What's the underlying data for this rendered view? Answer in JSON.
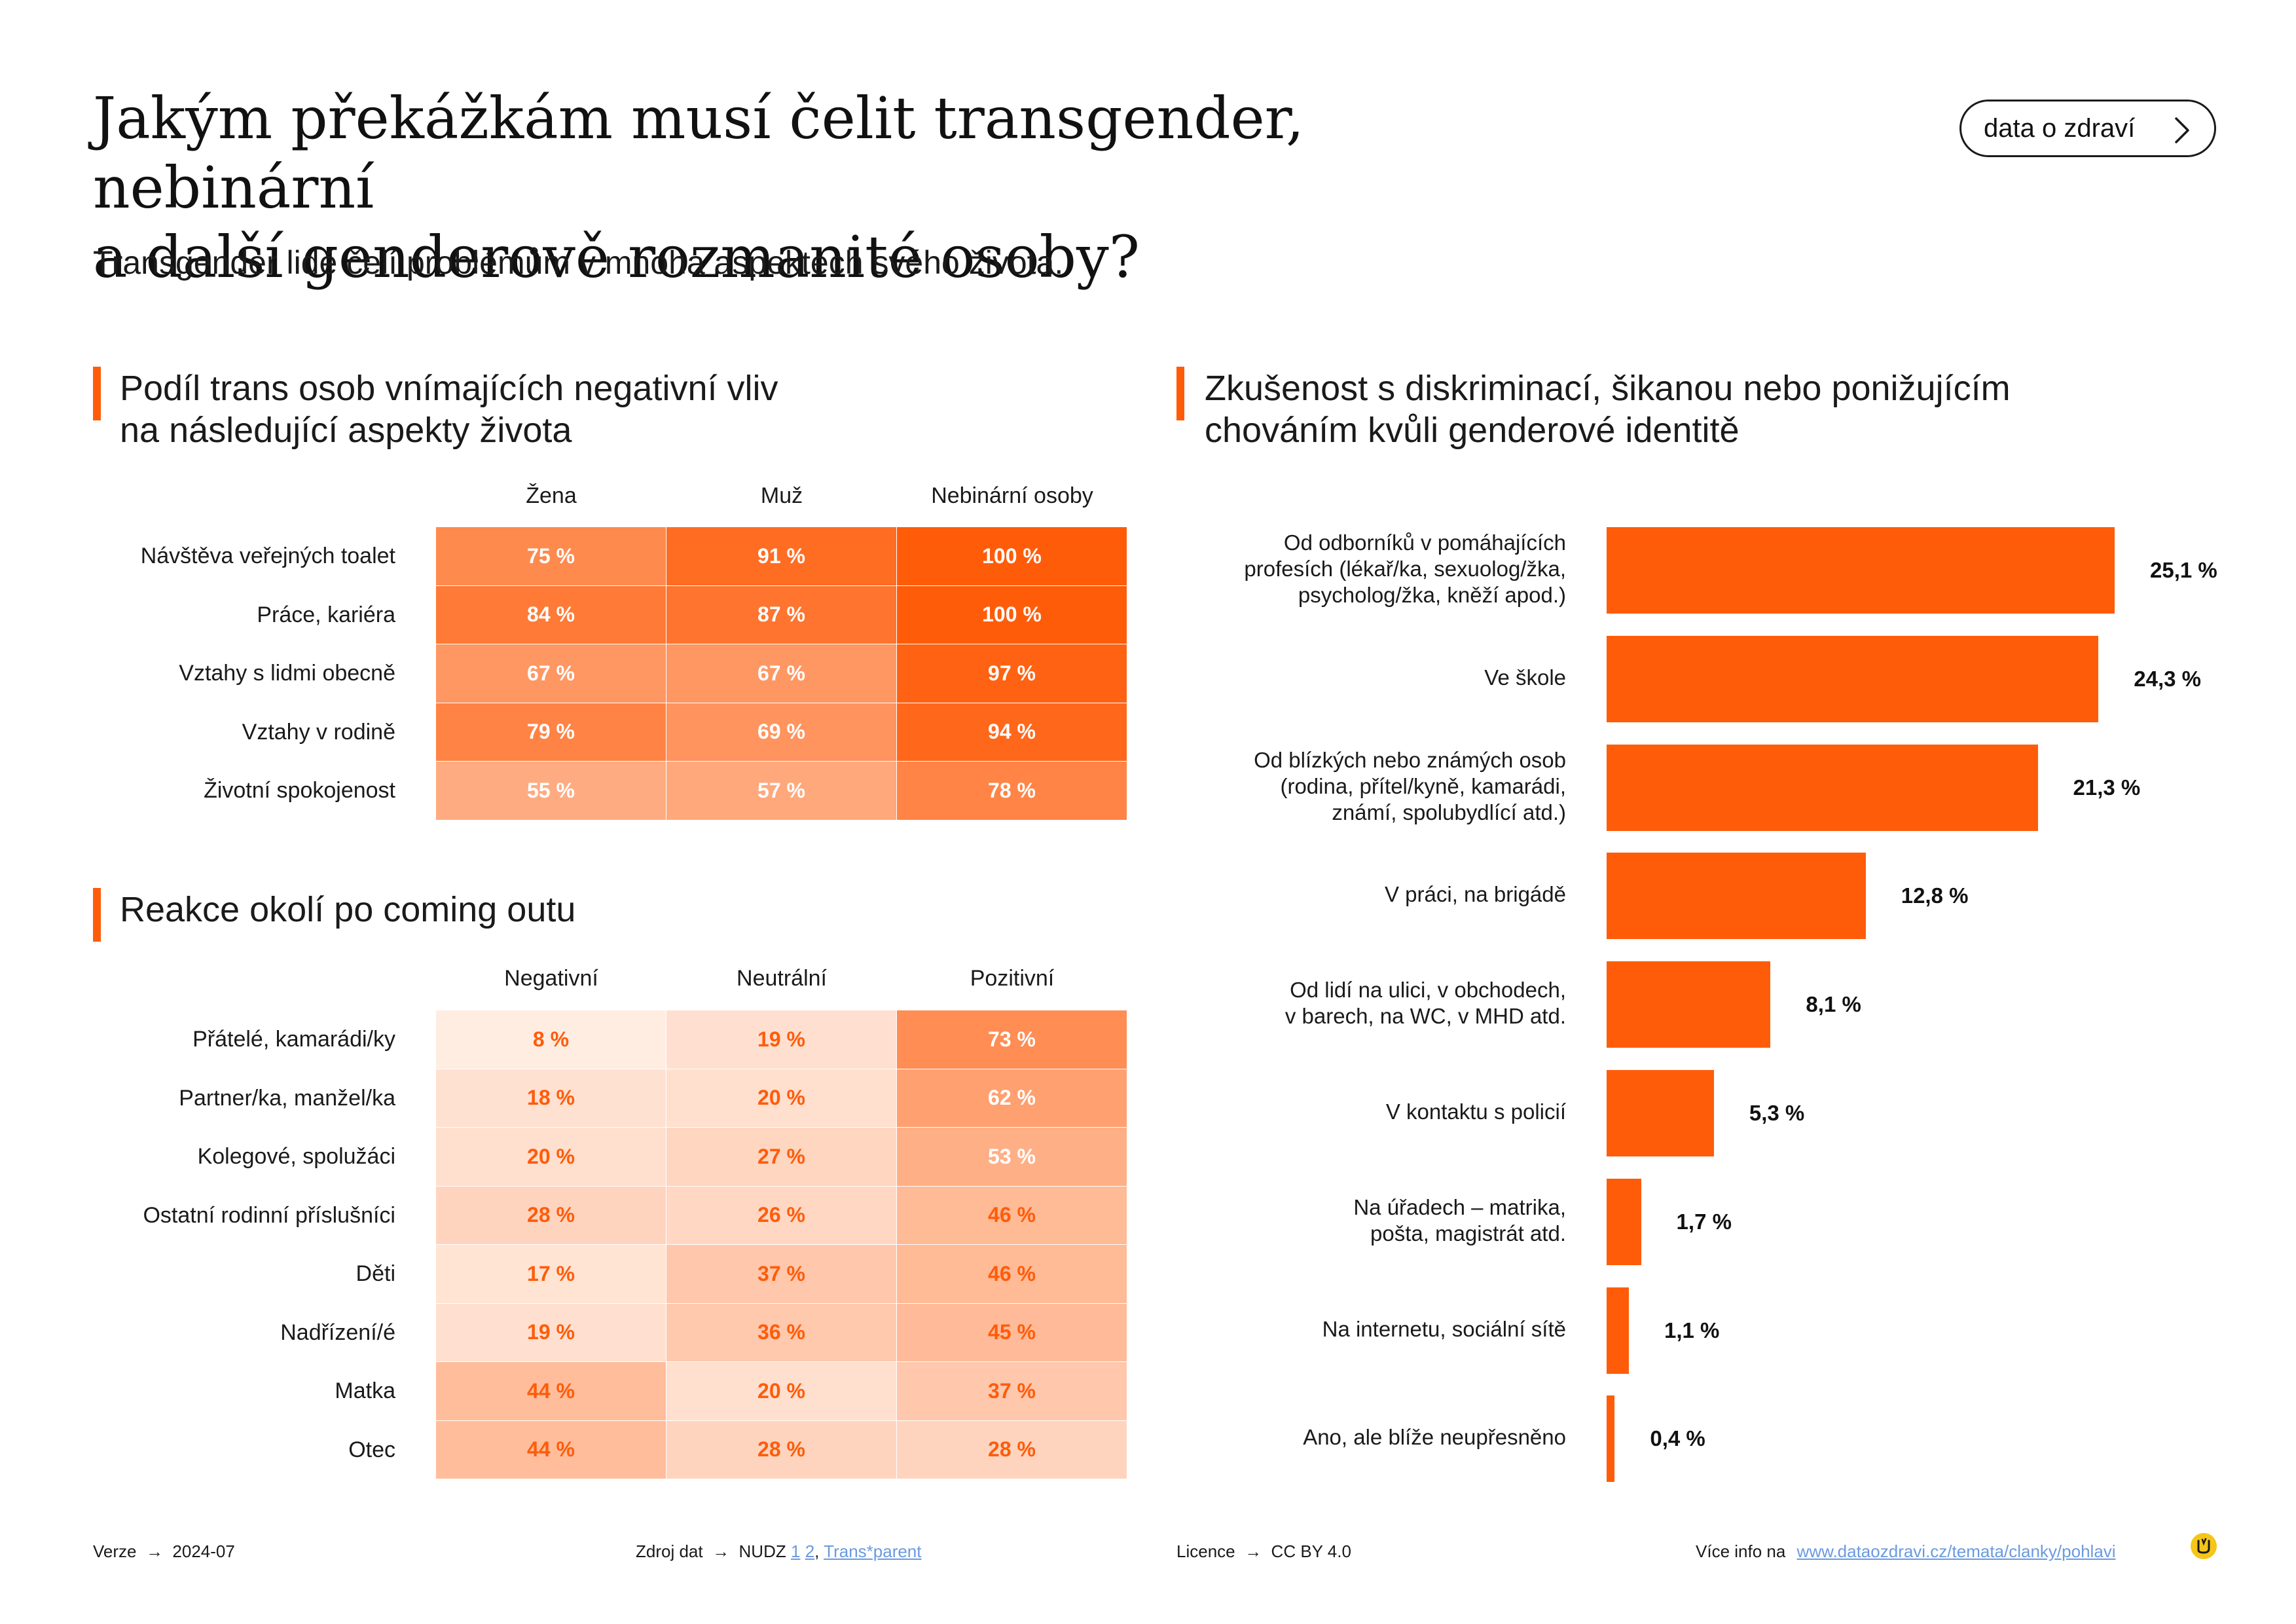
{
  "header": {
    "title_line1": "Jakým překážkám musí čelit transgender, nebinární",
    "title_line2": "a další genderově rozmanité osoby?",
    "subtitle": "Transgender lidé čelí problémům v mnoha aspektech svého života.",
    "button_label": "data o zdraví"
  },
  "section1": {
    "title_line1": "Podíl trans osob vnímajících negativní vliv",
    "title_line2": "na následující aspekty života"
  },
  "section2": {
    "title": "Reakce okolí po coming outu"
  },
  "section3": {
    "title_line1": "Zkušenost s diskriminací, šikanou nebo ponižujícím",
    "title_line2": "chováním kvůli genderové identitě"
  },
  "chart_data": [
    {
      "type": "heatmap",
      "columns": [
        "Žena",
        "Muž",
        "Nebinární osoby"
      ],
      "rows": [
        "Návštěva veřejných toalet",
        "Práce, kariéra",
        "Vztahy s lidmi obecně",
        "Vztahy v rodině",
        "Životní spokojenost"
      ],
      "values": [
        [
          75,
          91,
          100
        ],
        [
          84,
          87,
          100
        ],
        [
          67,
          67,
          97
        ],
        [
          79,
          69,
          94
        ],
        [
          55,
          57,
          78
        ]
      ],
      "labels": [
        [
          "75 %",
          "91 %",
          "100 %"
        ],
        [
          "84 %",
          "87 %",
          "100 %"
        ],
        [
          "67 %",
          "67 %",
          "97 %"
        ],
        [
          "79 %",
          "69 %",
          "94 %"
        ],
        [
          "55 %",
          "57 %",
          "78 %"
        ]
      ],
      "unit": "%"
    },
    {
      "type": "heatmap",
      "columns": [
        "Negativní",
        "Neutrální",
        "Pozitivní"
      ],
      "rows": [
        "Přátelé, kamarádi/ky",
        "Partner/ka, manžel/ka",
        "Kolegové, spolužáci",
        "Ostatní rodinní příslušníci",
        "Děti",
        "Nadřízení/é",
        "Matka",
        "Otec"
      ],
      "values": [
        [
          8,
          19,
          73
        ],
        [
          18,
          20,
          62
        ],
        [
          20,
          27,
          53
        ],
        [
          28,
          26,
          46
        ],
        [
          17,
          37,
          46
        ],
        [
          19,
          36,
          45
        ],
        [
          44,
          20,
          37
        ],
        [
          44,
          28,
          28
        ]
      ],
      "labels": [
        [
          "8 %",
          "19 %",
          "73 %"
        ],
        [
          "18 %",
          "20 %",
          "62 %"
        ],
        [
          "20 %",
          "27 %",
          "53 %"
        ],
        [
          "28 %",
          "26 %",
          "46 %"
        ],
        [
          "17 %",
          "37 %",
          "46 %"
        ],
        [
          "19 %",
          "36 %",
          "45 %"
        ],
        [
          "44 %",
          "20 %",
          "37 %"
        ],
        [
          "44 %",
          "28 %",
          "28 %"
        ]
      ],
      "unit": "%"
    },
    {
      "type": "bar",
      "orientation": "horizontal",
      "categories": [
        [
          "Od odborníků v pomáhajících",
          "profesích (lékař/ka, sexuolog/žka,",
          "psycholog/žka, kněží apod.)"
        ],
        [
          "Ve škole"
        ],
        [
          "Od blízkých nebo známých osob",
          "(rodina, přítel/kyně, kamarádi,",
          "známí, spolubydlící atd.)"
        ],
        [
          "V práci, na brigádě"
        ],
        [
          "Od lidí na ulici, v obchodech,",
          "v barech, na WC, v MHD atd."
        ],
        [
          "V kontaktu s policií"
        ],
        [
          "Na úřadech – matrika,",
          "pošta, magistrát atd."
        ],
        [
          "Na internetu, sociální sítě"
        ],
        [
          "Ano, ale blíže neupřesněno"
        ]
      ],
      "values": [
        25.1,
        24.3,
        21.3,
        12.8,
        8.1,
        5.3,
        1.7,
        1.1,
        0.4
      ],
      "value_labels": [
        "25,1 %",
        "24,3 %",
        "21,3 %",
        "12,8 %",
        "8,1 %",
        "5,3 %",
        "1,7 %",
        "1,1 %",
        "0,4 %"
      ],
      "xlim": [
        0,
        25.1
      ],
      "color": "#ff5c0a"
    }
  ],
  "colors": {
    "accent": "#ff5c0a",
    "base_light": "#fff3ec",
    "link": "#6a9ae0"
  },
  "footer": {
    "version_label": "Verze",
    "version": "2024-07",
    "source_label": "Zdroj dat",
    "source": "NUDZ",
    "source_link1": "1",
    "source_link2": "2",
    "source_sep": ",",
    "source_link3": "Trans*parent",
    "license_label": "Licence",
    "license": "CC BY 4.0",
    "more_label": "Více info na",
    "more_link": "www.dataozdravi.cz/temata/clanky/pohlavi"
  }
}
